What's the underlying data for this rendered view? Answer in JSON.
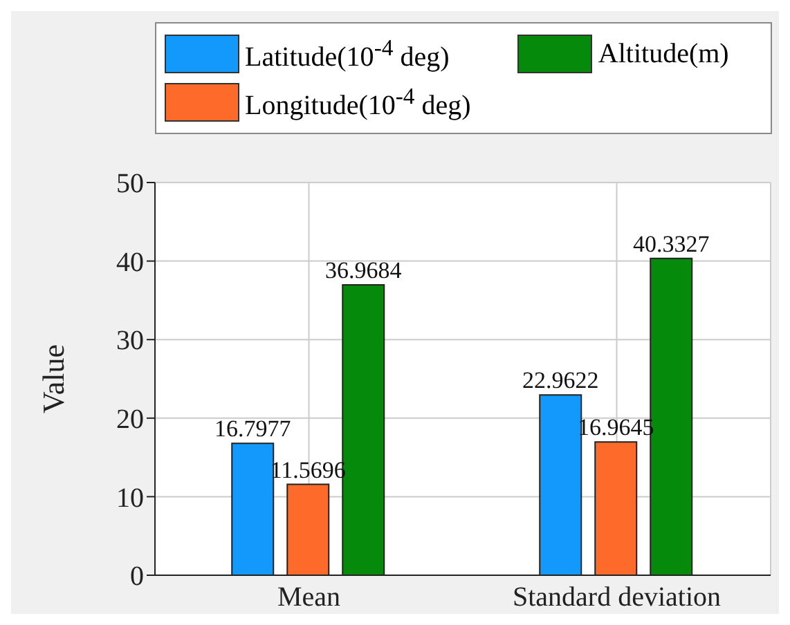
{
  "chart_data": {
    "type": "bar",
    "ylabel": "Value",
    "categories": [
      "Mean",
      "Standard deviation"
    ],
    "series": [
      {
        "name": "Latitude(10$^{-4}$ deg)",
        "color": "#1399fc",
        "values": [
          16.7977,
          22.9622
        ]
      },
      {
        "name": "Longitude(10$^{-4}$ deg)",
        "color": "#fd6a29",
        "values": [
          11.5696,
          16.9645
        ]
      },
      {
        "name": "Altitude(m)",
        "color": "#068a0b",
        "values": [
          36.9684,
          40.3327
        ]
      }
    ],
    "ylim": [
      0,
      50
    ],
    "yticks": [
      0,
      10,
      20,
      30,
      40,
      50
    ],
    "grid": true,
    "legend": "top",
    "data_labels": true
  }
}
